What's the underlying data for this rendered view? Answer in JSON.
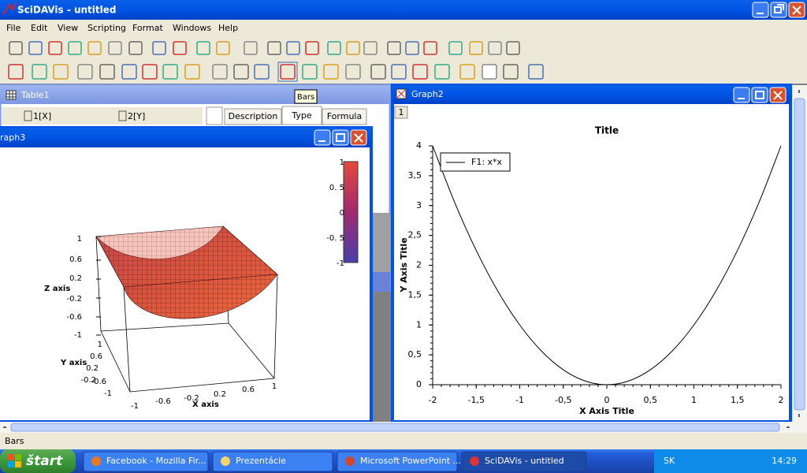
{
  "window": {
    "title": "SciDAVis - untitled"
  },
  "menu": [
    "File",
    "Edit",
    "View",
    "Scripting",
    "Format",
    "Windows",
    "Help"
  ],
  "tooltip": "Bars",
  "table1": {
    "title": "Table1",
    "columns": [
      "1[X]",
      "2[Y]"
    ],
    "tabs": [
      "Description",
      "Type",
      "Formula"
    ]
  },
  "graph3": {
    "title": "raph3",
    "z_label": "Z axis",
    "y_label": "Y axis",
    "x_label": "X axis",
    "z_ticks": [
      "1",
      "0.6",
      "0.2",
      "-0.2",
      "-0.6",
      "-1"
    ],
    "y_ticks": [
      "1",
      "0.6",
      "0.2",
      "-0.2",
      "-0.6",
      "-1"
    ],
    "x_ticks": [
      "-1",
      "-0.6",
      "-0.2",
      "0.2",
      "0.6",
      "1"
    ],
    "colorbar_ticks": [
      "1",
      "0. 5",
      "0",
      "-0. 5",
      "-1"
    ]
  },
  "graph2": {
    "title": "Graph2",
    "layer": "1",
    "chart_data": {
      "type": "line",
      "title": "Title",
      "xlabel": "X Axis Title",
      "ylabel": "Y Axis Title",
      "x": [
        -2,
        -1.75,
        -1.5,
        -1.25,
        -1,
        -0.75,
        -0.5,
        -0.25,
        0,
        0.25,
        0.5,
        0.75,
        1,
        1.25,
        1.5,
        1.75,
        2
      ],
      "series": [
        {
          "name": "F1: x*x",
          "color": "#000000",
          "values": [
            4,
            3.0625,
            2.25,
            1.5625,
            1,
            0.5625,
            0.25,
            0.0625,
            0,
            0.0625,
            0.25,
            0.5625,
            1,
            1.5625,
            2.25,
            3.0625,
            4
          ]
        }
      ],
      "xlim": [
        -2,
        2
      ],
      "ylim": [
        0,
        4
      ],
      "xticks": [
        -2,
        {
          "value": -1.5,
          "label": "-1,5"
        },
        -1,
        {
          "value": -0.5,
          "label": "-0,5"
        },
        0,
        {
          "value": 0.5,
          "label": "0,5"
        },
        1,
        {
          "value": 1.5,
          "label": "1,5"
        },
        2
      ],
      "yticks": [
        0,
        {
          "value": 0.5,
          "label": "0,5"
        },
        1,
        {
          "value": 1.5,
          "label": "1,5"
        },
        2,
        {
          "value": 2.5,
          "label": "2,5"
        },
        3,
        {
          "value": 3.5,
          "label": "3,5"
        },
        4
      ],
      "legend": "upper left"
    }
  },
  "status": "Bars",
  "taskbar": {
    "start": "štart",
    "tasks": [
      "Facebook - Mozilla Fir...",
      "Prezentácie",
      "Microsoft PowerPoint ...",
      "SciDAVis - untitled"
    ],
    "language": "SK",
    "clock": "14:29"
  }
}
